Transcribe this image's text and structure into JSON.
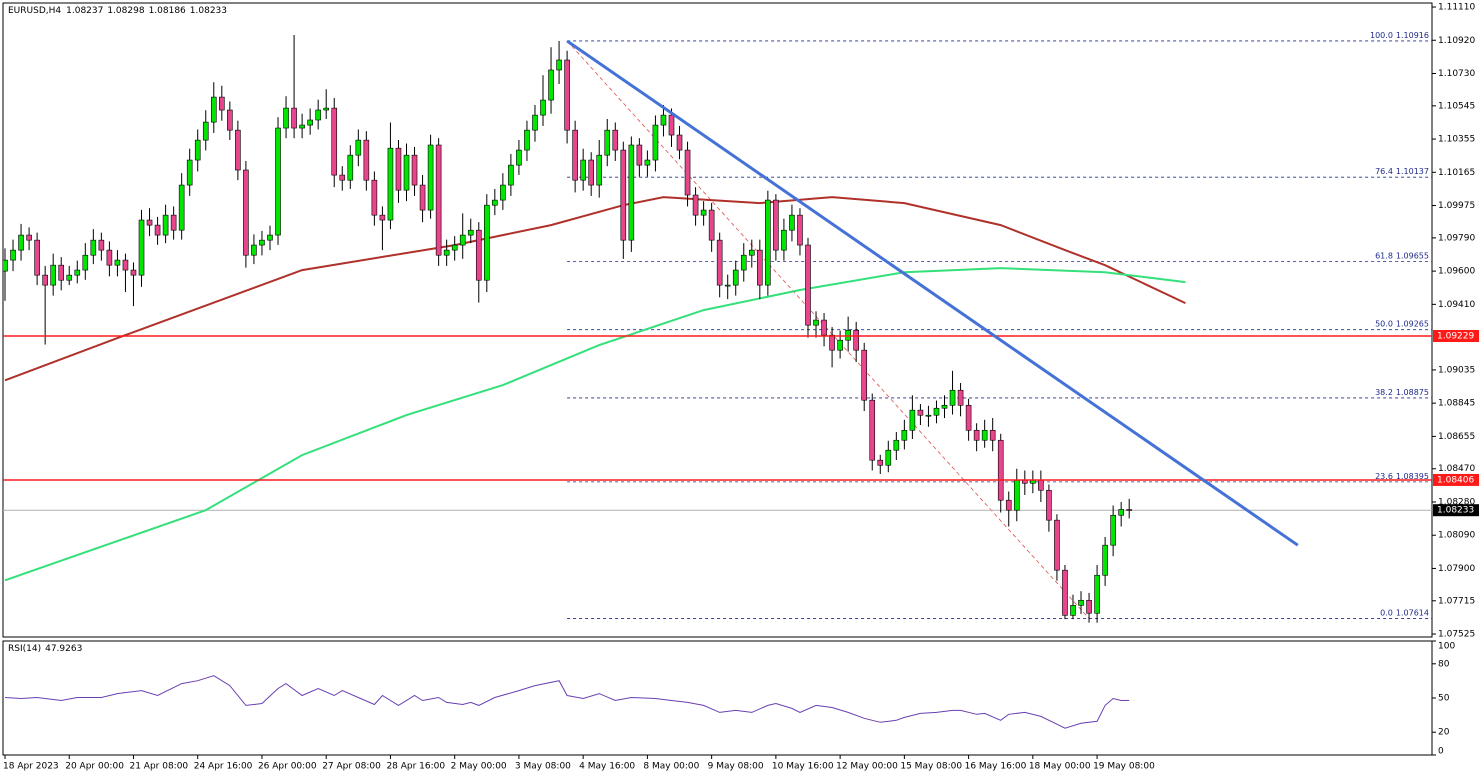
{
  "chart_data": {
    "type": "candlestick",
    "symbol": "EURUSD,H4",
    "open": [
      1.096,
      1.09663,
      1.0972,
      1.09806,
      1.09777,
      1.09577,
      1.0952,
      1.09634,
      1.09548,
      1.09577,
      1.09606,
      1.09691,
      1.09777,
      1.0972,
      1.09634,
      1.09663,
      1.09606,
      1.09577,
      1.09892,
      1.09863,
      1.09806,
      1.0992,
      1.09834,
      1.10092,
      1.10235,
      1.10349,
      1.10452,
      1.10595,
      1.10521,
      1.10406,
      1.10178,
      1.09691,
      1.09749,
      1.09777,
      1.09806,
      1.10418,
      1.10532,
      1.10418,
      1.10435,
      1.10464,
      1.10521,
      1.10532,
      1.10149,
      1.1012,
      1.10263,
      1.10349,
      1.1012,
      1.0992,
      1.09892,
      1.10303,
      1.10063,
      1.10263,
      1.10092,
      1.09949,
      1.10321,
      1.09691,
      1.0972,
      1.09749,
      1.09806,
      1.09834,
      1.09548,
      1.09977,
      1.10006,
      1.10092,
      1.10206,
      1.10292,
      1.10406,
      1.10492,
      1.10578,
      1.1075,
      1.10807,
      1.10406,
      1.1012,
      1.10235,
      1.10092,
      1.10263,
      1.10406,
      1.10292,
      1.09777,
      1.10321,
      1.10206,
      1.10235,
      1.10435,
      1.10492,
      1.10378,
      1.10292,
      1.10035,
      1.0992,
      1.09949,
      1.09777,
      1.0952,
      1.0952,
      1.09606,
      1.09691,
      1.0972,
      1.0952,
      1.10006,
      1.0972,
      1.09834,
      1.0992,
      1.09749,
      1.09291,
      1.0932,
      1.09234,
      1.09148,
      1.09205,
      1.09262,
      1.09148,
      1.08862,
      1.08519,
      1.0849,
      1.08576,
      1.08633,
      1.0869,
      1.08805,
      1.08776,
      1.08776,
      1.08816,
      1.08833,
      1.08919,
      1.08833,
      1.0869,
      1.08633,
      1.0869,
      1.08633,
      1.0829,
      1.08233,
      1.08404,
      1.08387,
      1.08404,
      1.08347,
      1.08176,
      1.0789,
      1.07632,
      1.07689,
      1.07718,
      1.07644,
      1.07861,
      1.08033,
      1.08204,
      1.08237
    ],
    "high": [
      1.0973,
      1.0978,
      1.0987,
      1.0985,
      1.0982,
      1.0963,
      1.097,
      1.0968,
      1.0963,
      1.0966,
      1.0976,
      1.0984,
      1.0982,
      1.0977,
      1.0972,
      1.097,
      1.0965,
      1.0995,
      1.0996,
      1.0991,
      1.0998,
      1.0997,
      1.1016,
      1.103,
      1.1041,
      1.1052,
      1.1068,
      1.1066,
      1.1057,
      1.1046,
      1.1023,
      1.0981,
      1.0983,
      1.0986,
      1.1048,
      1.106,
      1.1095,
      1.105,
      1.1053,
      1.1058,
      1.1064,
      1.1059,
      1.102,
      1.1032,
      1.1041,
      1.104,
      1.1017,
      1.0997,
      1.1045,
      1.1035,
      1.1033,
      1.1031,
      1.1015,
      1.1038,
      1.1036,
      1.0978,
      1.098,
      1.0993,
      1.099,
      1.0988,
      1.1004,
      1.1007,
      1.1016,
      1.1027,
      1.1035,
      1.1046,
      1.1055,
      1.1072,
      1.1088,
      1.10916,
      1.1086,
      1.1046,
      1.103,
      1.1028,
      1.1035,
      1.1047,
      1.1045,
      1.1034,
      1.1037,
      1.1036,
      1.1029,
      1.1049,
      1.1055,
      1.1053,
      1.1043,
      1.1034,
      1.1008,
      1.1,
      1.0999,
      1.0982,
      1.0958,
      1.0966,
      1.0976,
      1.0978,
      1.0978,
      1.1006,
      1.1004,
      1.099,
      1.0998,
      1.0996,
      1.0979,
      1.0937,
      1.0936,
      1.0928,
      1.0926,
      1.0934,
      1.0931,
      1.0919,
      1.089,
      1.0855,
      1.0863,
      1.0868,
      1.0875,
      1.0889,
      1.0884,
      1.0883,
      1.0886,
      1.0889,
      1.0903,
      1.0896,
      1.0887,
      1.0873,
      1.0875,
      1.0876,
      1.0867,
      1.0834,
      1.0847,
      1.0846,
      1.0846,
      1.0846,
      1.0838,
      1.0821,
      1.0792,
      1.0775,
      1.0777,
      1.0776,
      1.0792,
      1.0808,
      1.0826,
      1.0828,
      1.08298
    ],
    "low": [
      1.0943,
      1.096,
      1.0966,
      1.0972,
      1.0952,
      1.0918,
      1.0946,
      1.0949,
      1.0952,
      1.0953,
      1.0955,
      1.0964,
      1.0966,
      1.0957,
      1.0957,
      1.0948,
      1.094,
      1.0951,
      1.098,
      1.0975,
      1.0976,
      1.0978,
      1.0978,
      1.1003,
      1.1017,
      1.1029,
      1.1039,
      1.1046,
      1.1035,
      1.1012,
      1.0962,
      1.0964,
      1.0969,
      1.0972,
      1.0975,
      1.1036,
      1.1036,
      1.1036,
      1.1038,
      1.1041,
      1.1047,
      1.1008,
      1.1006,
      1.1007,
      1.102,
      1.1006,
      1.0986,
      1.0972,
      1.0984,
      1.0999,
      1.1,
      1.1003,
      1.0988,
      1.099,
      1.0963,
      1.0963,
      1.0966,
      1.0967,
      1.0976,
      1.0942,
      1.0948,
      1.0992,
      1.0995,
      1.1003,
      1.1015,
      1.1023,
      1.1034,
      1.1043,
      1.105,
      1.1067,
      1.1033,
      1.1005,
      1.1006,
      1.1003,
      1.1002,
      1.102,
      1.1023,
      1.0967,
      1.0971,
      1.1014,
      1.1014,
      1.1017,
      1.1037,
      1.1031,
      1.1024,
      1.0997,
      1.0986,
      1.0986,
      1.0971,
      1.0945,
      1.0944,
      1.0946,
      1.0954,
      1.0962,
      1.0944,
      1.0946,
      1.0966,
      1.0966,
      1.0977,
      1.0969,
      1.0922,
      1.0922,
      1.0917,
      1.0905,
      1.091,
      1.0914,
      1.0908,
      1.088,
      1.0846,
      1.0844,
      1.0845,
      1.0852,
      1.0858,
      1.0864,
      1.0872,
      1.0871,
      1.0873,
      1.0876,
      1.0878,
      1.0877,
      1.0863,
      1.0857,
      1.0859,
      1.0857,
      1.0822,
      1.0814,
      1.0817,
      1.0832,
      1.0833,
      1.0828,
      1.0811,
      1.0783,
      1.0761,
      1.0761,
      1.0764,
      1.0759,
      1.0759,
      1.078,
      1.0797,
      1.0814,
      1.08186
    ],
    "close": [
      1.09663,
      1.0972,
      1.09806,
      1.09777,
      1.09577,
      1.0952,
      1.09634,
      1.09548,
      1.09577,
      1.09606,
      1.09691,
      1.09777,
      1.0972,
      1.09634,
      1.09663,
      1.09606,
      1.09577,
      1.09892,
      1.09863,
      1.09806,
      1.0992,
      1.09834,
      1.10092,
      1.10235,
      1.10349,
      1.10452,
      1.10595,
      1.10521,
      1.10406,
      1.10178,
      1.09691,
      1.09749,
      1.09777,
      1.09806,
      1.10418,
      1.10532,
      1.10418,
      1.10435,
      1.10464,
      1.10521,
      1.10532,
      1.10149,
      1.1012,
      1.10263,
      1.10349,
      1.1012,
      1.0992,
      1.09892,
      1.10303,
      1.10063,
      1.10263,
      1.10092,
      1.09949,
      1.10321,
      1.09691,
      1.0972,
      1.09749,
      1.09806,
      1.09834,
      1.09548,
      1.09977,
      1.10006,
      1.10092,
      1.10206,
      1.10292,
      1.10406,
      1.10492,
      1.10578,
      1.1075,
      1.10807,
      1.10406,
      1.1012,
      1.10235,
      1.10092,
      1.10263,
      1.10406,
      1.10292,
      1.09777,
      1.10321,
      1.10206,
      1.10235,
      1.10435,
      1.10492,
      1.10378,
      1.10292,
      1.10035,
      1.0992,
      1.09949,
      1.09777,
      1.0952,
      1.0952,
      1.09606,
      1.09691,
      1.0972,
      1.0952,
      1.10006,
      1.0972,
      1.09834,
      1.0992,
      1.09749,
      1.09291,
      1.0932,
      1.09234,
      1.09148,
      1.09205,
      1.09262,
      1.09148,
      1.08862,
      1.08519,
      1.0849,
      1.08576,
      1.08633,
      1.0869,
      1.08805,
      1.08776,
      1.08776,
      1.08816,
      1.08833,
      1.08919,
      1.08833,
      1.0869,
      1.08633,
      1.0869,
      1.08633,
      1.0829,
      1.08233,
      1.08404,
      1.08387,
      1.08404,
      1.08347,
      1.08176,
      1.0789,
      1.07632,
      1.07689,
      1.07718,
      1.07644,
      1.07861,
      1.08033,
      1.08204,
      1.08237,
      1.08233
    ],
    "bull_color": "#00e600",
    "bear_color": "#e8468c",
    "ylim": [
      1.07508,
      1.11133
    ],
    "yticks": [
      {
        "value": 1.1111,
        "label": "1.11110"
      },
      {
        "value": 1.1092,
        "label": "1.10920"
      },
      {
        "value": 1.1073,
        "label": "1.10730"
      },
      1.10545,
      1.10355,
      1.10165,
      1.09975,
      {
        "value": 1.0979,
        "label": "1.09790"
      },
      {
        "value": 1.096,
        "label": "1.09600"
      },
      {
        "value": 1.0941,
        "label": "1.09410"
      },
      1.09035,
      1.08845,
      1.08655,
      {
        "value": 1.0847,
        "label": "1.08470"
      },
      {
        "value": 1.0828,
        "label": "1.08280"
      },
      {
        "value": 1.0809,
        "label": "1.08090"
      },
      {
        "value": 1.079,
        "label": "1.07900"
      },
      1.07715,
      1.07525
    ],
    "xticks": [
      {
        "value": 0,
        "label": "18 Apr 2023"
      },
      {
        "value": 8,
        "label": "20 Apr 00:00"
      },
      {
        "value": 16,
        "label": "21 Apr 08:00"
      },
      {
        "value": 24,
        "label": "24 Apr 16:00"
      },
      {
        "value": 32,
        "label": "26 Apr 00:00"
      },
      {
        "value": 40,
        "label": "27 Apr 08:00"
      },
      {
        "value": 48,
        "label": "28 Apr 16:00"
      },
      {
        "value": 56,
        "label": "2 May 00:00"
      },
      {
        "value": 64,
        "label": "3 May 08:00"
      },
      {
        "value": 72,
        "label": "4 May 16:00"
      },
      {
        "value": 80,
        "label": "8 May 00:00"
      },
      {
        "value": 88,
        "label": "9 May 08:00"
      },
      {
        "value": 96,
        "label": "10 May 16:00"
      },
      {
        "value": 104,
        "label": "12 May 00:00"
      },
      {
        "value": 112,
        "label": "15 May 08:00"
      },
      {
        "value": 120,
        "label": "16 May 16:00"
      },
      {
        "value": 128,
        "label": "18 May 00:00"
      },
      {
        "value": 136,
        "label": "19 May 08:00"
      }
    ],
    "moving_averages": [
      {
        "color": "#b0302a",
        "x": [
          0,
          15,
          37,
          56,
          68,
          77,
          82,
          94,
          103,
          112,
          124,
          132,
          137,
          147
        ],
        "values": [
          1.08976,
          1.09234,
          1.09606,
          1.09749,
          1.09863,
          1.09977,
          1.10023,
          1.09989,
          1.10023,
          1.09989,
          1.09863,
          1.0972,
          1.09634,
          1.09417
        ]
      },
      {
        "color": "#33e07a",
        "x": [
          0,
          25,
          37,
          50,
          62,
          74,
          87,
          99,
          112,
          124,
          137,
          147
        ],
        "values": [
          1.07832,
          1.08233,
          1.08548,
          1.08777,
          1.08948,
          1.09177,
          1.09377,
          1.09492,
          1.09594,
          1.09617,
          1.09594,
          1.09537
        ]
      }
    ],
    "trendline": {
      "color": "#4472d6",
      "x": [
        70,
        161
      ],
      "values": [
        1.10916,
        1.08033
      ]
    },
    "fibonacci": {
      "color": "#1f2a8c",
      "line_color": "#e05050",
      "x": [
        70,
        135
      ],
      "levels": [
        {
          "level": {
            "value": 100,
            "label": "100.0"
          },
          "price": 1.10916
        },
        {
          "level": 76.4,
          "price": 1.10137
        },
        {
          "level": 61.8,
          "price": 1.09655
        },
        {
          "level": {
            "value": 50,
            "label": "50.0"
          },
          "price": 1.09265
        },
        {
          "level": 38.2,
          "price": 1.08875
        },
        {
          "level": 23.6,
          "price": 1.08395
        },
        {
          "level": {
            "value": 0,
            "label": "0.0"
          },
          "price": 1.07614
        }
      ]
    },
    "hlines": {
      "color": "#ff1a1a",
      "values": [
        1.09229,
        1.08406
      ]
    },
    "rsi": {
      "label": "RSI(14)",
      "color": "#6a3fb0",
      "ylim": [
        0,
        100
      ],
      "yticks": [
        0,
        20,
        50,
        80,
        100
      ],
      "x": [
        0,
        2,
        4,
        7,
        9,
        12,
        14,
        17,
        19,
        22,
        24,
        26,
        28,
        30,
        32,
        34,
        35,
        37,
        39,
        41,
        42,
        44,
        46,
        47,
        49,
        51,
        52,
        54,
        55,
        57,
        58,
        59,
        61,
        64,
        66,
        69,
        70,
        72,
        74,
        76,
        78,
        81,
        83,
        85,
        87,
        89,
        91,
        93,
        95,
        96,
        98,
        99,
        101,
        103,
        105,
        107,
        109,
        111,
        112,
        114,
        116,
        118,
        119,
        121,
        122,
        124,
        125,
        127,
        129,
        131,
        132,
        134,
        136,
        137,
        138,
        139,
        140
      ],
      "values": [
        50.4,
        49.6,
        50.4,
        47.8,
        50.4,
        50.4,
        53.9,
        56.5,
        52.2,
        62.6,
        65.2,
        69.6,
        60.9,
        43.5,
        45.2,
        58.3,
        62.6,
        52.2,
        58.3,
        52.2,
        56.5,
        50.4,
        44.3,
        52.2,
        43.5,
        52.2,
        47.8,
        50.4,
        46.1,
        44.3,
        46.1,
        43.5,
        50.4,
        56.5,
        60.9,
        65.2,
        52.2,
        49.6,
        53.9,
        47.8,
        50.4,
        49.6,
        47.8,
        46.1,
        43.5,
        37.4,
        39.1,
        37.4,
        43.5,
        45.2,
        40.9,
        37.4,
        43.5,
        41.7,
        37.4,
        32.2,
        28.7,
        30.4,
        33,
        36.5,
        37.4,
        39.1,
        39.1,
        35.7,
        36.5,
        30.4,
        35.7,
        37.4,
        33.9,
        27,
        23.5,
        27.8,
        29.6,
        43.5,
        49.6,
        47.8,
        47.9263
      ]
    }
  }
}
